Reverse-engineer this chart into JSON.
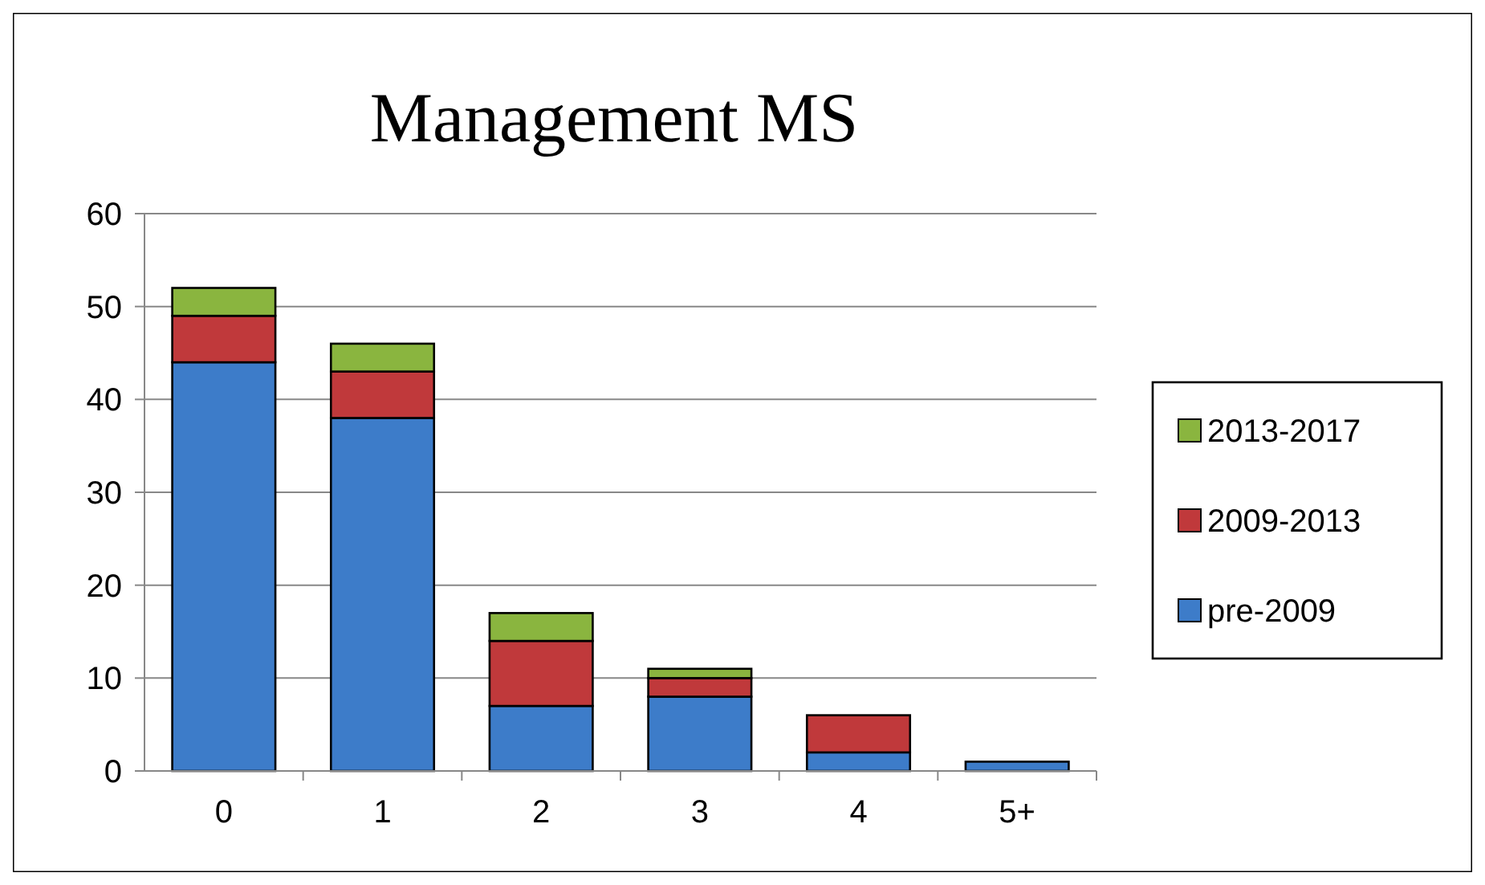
{
  "chart_data": {
    "type": "bar",
    "title": "Management MS",
    "categories": [
      "0",
      "1",
      "2",
      "3",
      "4",
      "5+"
    ],
    "stacked": true,
    "series": [
      {
        "name": "pre-2009",
        "color": "#3d7cc9",
        "values": [
          44,
          38,
          7,
          8,
          2,
          1
        ]
      },
      {
        "name": "2009-2013",
        "color": "#c0393b",
        "values": [
          5,
          5,
          7,
          2,
          4,
          0
        ]
      },
      {
        "name": "2013-2017",
        "color": "#8ab53f",
        "values": [
          3,
          3,
          3,
          1,
          0,
          0
        ]
      }
    ],
    "ylim": [
      0,
      60
    ],
    "yticks": [
      0,
      10,
      20,
      30,
      40,
      50,
      60
    ],
    "grid": "y",
    "legend": "right"
  }
}
